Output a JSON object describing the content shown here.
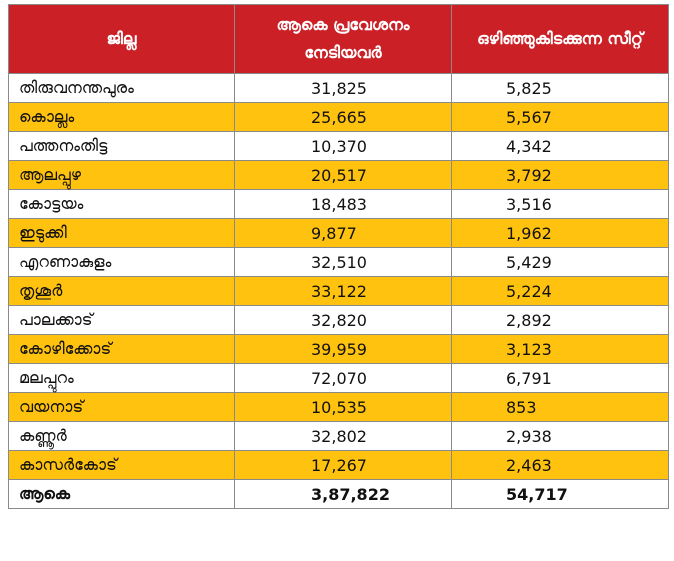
{
  "header": {
    "district": "ജില്ല",
    "admitted": "ആകെ പ്രവേശനം നേടിയവർ",
    "vacant": "ഒഴിഞ്ഞുകിടക്കുന്ന സീറ്റ്"
  },
  "rows": [
    {
      "district": "തിരുവനന്തപുരം",
      "admitted": "31,825",
      "vacant": "5,825"
    },
    {
      "district": "കൊല്ലം",
      "admitted": "25,665",
      "vacant": "5,567"
    },
    {
      "district": "പത്തനംതിട്ട",
      "admitted": "10,370",
      "vacant": "4,342"
    },
    {
      "district": "ആലപ്പുഴ",
      "admitted": "20,517",
      "vacant": "3,792"
    },
    {
      "district": "കോട്ടയം",
      "admitted": "18,483",
      "vacant": "3,516"
    },
    {
      "district": "ഇടുക്കി",
      "admitted": "9,877",
      "vacant": "1,962"
    },
    {
      "district": "എറണാകുളം",
      "admitted": "32,510",
      "vacant": "5,429"
    },
    {
      "district": "തൃശൂർ",
      "admitted": "33,122",
      "vacant": "5,224"
    },
    {
      "district": "പാലക്കാട്",
      "admitted": "32,820",
      "vacant": "2,892"
    },
    {
      "district": "കോഴിക്കോട്",
      "admitted": "39,959",
      "vacant": "3,123"
    },
    {
      "district": "മലപ്പുറം",
      "admitted": "72,070",
      "vacant": "6,791"
    },
    {
      "district": "വയനാട്",
      "admitted": "10,535",
      "vacant": "853"
    },
    {
      "district": "കണ്ണൂർ",
      "admitted": "32,802",
      "vacant": "2,938"
    },
    {
      "district": "കാസർകോട്",
      "admitted": "17,267",
      "vacant": "2,463"
    }
  ],
  "total": {
    "label": "ആകെ",
    "admitted": "3,87,822",
    "vacant": "54,717"
  },
  "colors": {
    "header_bg": "#cc2027",
    "stripe": "#ffc20e",
    "header_text": "#ffffff"
  }
}
